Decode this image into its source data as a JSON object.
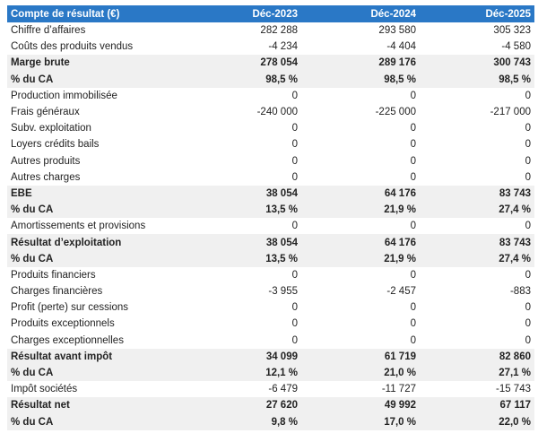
{
  "table": {
    "header": [
      "Compte de résultat (€)",
      "Déc-2023",
      "Déc-2024",
      "Déc-2025"
    ],
    "rows": [
      {
        "cells": [
          "Chiffre d’affaires",
          "282 288",
          "293 580",
          "305 323"
        ],
        "bold": false
      },
      {
        "cells": [
          "Coûts des produits vendus",
          "-4 234",
          "-4 404",
          "-4 580"
        ],
        "bold": false
      },
      {
        "cells": [
          "Marge brute",
          "278 054",
          "289 176",
          "300 743"
        ],
        "bold": true
      },
      {
        "cells": [
          "% du CA",
          "98,5 %",
          "98,5 %",
          "98,5 %"
        ],
        "bold": true
      },
      {
        "cells": [
          "Production immobilisée",
          "0",
          "0",
          "0"
        ],
        "bold": false
      },
      {
        "cells": [
          "Frais généraux",
          "-240 000",
          "-225 000",
          "-217 000"
        ],
        "bold": false
      },
      {
        "cells": [
          "Subv. exploitation",
          "0",
          "0",
          "0"
        ],
        "bold": false
      },
      {
        "cells": [
          "Loyers crédits bails",
          "0",
          "0",
          "0"
        ],
        "bold": false
      },
      {
        "cells": [
          "Autres produits",
          "0",
          "0",
          "0"
        ],
        "bold": false
      },
      {
        "cells": [
          "Autres charges",
          "0",
          "0",
          "0"
        ],
        "bold": false
      },
      {
        "cells": [
          "EBE",
          "38 054",
          "64 176",
          "83 743"
        ],
        "bold": true
      },
      {
        "cells": [
          "% du CA",
          "13,5 %",
          "21,9 %",
          "27,4 %"
        ],
        "bold": true
      },
      {
        "cells": [
          "Amortissements et provisions",
          "0",
          "0",
          "0"
        ],
        "bold": false
      },
      {
        "cells": [
          "Résultat d’exploitation",
          "38 054",
          "64 176",
          "83 743"
        ],
        "bold": true
      },
      {
        "cells": [
          "% du CA",
          "13,5 %",
          "21,9 %",
          "27,4 %"
        ],
        "bold": true
      },
      {
        "cells": [
          "Produits financiers",
          "0",
          "0",
          "0"
        ],
        "bold": false
      },
      {
        "cells": [
          "Charges financières",
          "-3 955",
          "-2 457",
          "-883"
        ],
        "bold": false
      },
      {
        "cells": [
          "Profit (perte) sur cessions",
          "0",
          "0",
          "0"
        ],
        "bold": false
      },
      {
        "cells": [
          "Produits exceptionnels",
          "0",
          "0",
          "0"
        ],
        "bold": false
      },
      {
        "cells": [
          "Charges exceptionnelles",
          "0",
          "0",
          "0"
        ],
        "bold": false
      },
      {
        "cells": [
          "Résultat avant impôt",
          "34 099",
          "61 719",
          "82 860"
        ],
        "bold": true
      },
      {
        "cells": [
          "% du CA",
          "12,1 %",
          "21,0 %",
          "27,1 %"
        ],
        "bold": true
      },
      {
        "cells": [
          "Impôt sociétés",
          "-6 479",
          "-11 727",
          "-15 743"
        ],
        "bold": false
      },
      {
        "cells": [
          "Résultat net",
          "27 620",
          "49 992",
          "67 117"
        ],
        "bold": true
      },
      {
        "cells": [
          "% du CA",
          "9,8 %",
          "17,0 %",
          "22,0 %"
        ],
        "bold": true
      }
    ]
  }
}
